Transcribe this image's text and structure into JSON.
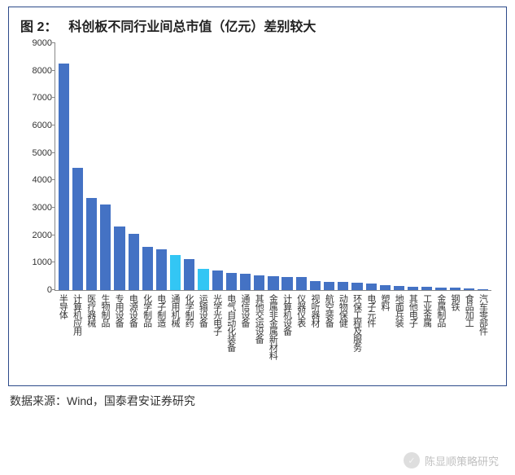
{
  "figure": {
    "number_label": "图 2：",
    "title": "科创板不同行业间总市值（亿元）差别较大",
    "source_label": "数据来源：Wind，国泰君安证券研究",
    "watermark_text": "陈显顺策略研究"
  },
  "chart": {
    "type": "bar",
    "ylim": [
      0,
      9000
    ],
    "ytick_step": 1000,
    "yticks": [
      0,
      1000,
      2000,
      3000,
      4000,
      5000,
      6000,
      7000,
      8000,
      9000
    ],
    "background_color": "#ffffff",
    "axis_color": "#888888",
    "label_fontsize": 11,
    "title_fontsize": 16,
    "bar_width": 0.9,
    "default_bar_color": "#4472c4",
    "highlight_bar_color": "#33c6f4",
    "categories": [
      {
        "label": "半导体",
        "value": 8250,
        "color": "#4472c4"
      },
      {
        "label": "计算机应用",
        "value": 4450,
        "color": "#4472c4"
      },
      {
        "label": "医疗器械",
        "value": 3350,
        "color": "#4472c4"
      },
      {
        "label": "生物制品",
        "value": 3120,
        "color": "#4472c4"
      },
      {
        "label": "专用设备",
        "value": 2330,
        "color": "#4472c4"
      },
      {
        "label": "电源设备",
        "value": 2060,
        "color": "#4472c4"
      },
      {
        "label": "化学制品",
        "value": 1580,
        "color": "#4472c4"
      },
      {
        "label": "电子制造",
        "value": 1500,
        "color": "#4472c4"
      },
      {
        "label": "通用机械",
        "value": 1270,
        "color": "#33c6f4"
      },
      {
        "label": "化学制药",
        "value": 1140,
        "color": "#4472c4"
      },
      {
        "label": "运输设备",
        "value": 760,
        "color": "#33c6f4"
      },
      {
        "label": "光学光电子",
        "value": 700,
        "color": "#4472c4"
      },
      {
        "label": "电气自动化装备",
        "value": 630,
        "color": "#4472c4"
      },
      {
        "label": "通信设备",
        "value": 590,
        "color": "#4472c4"
      },
      {
        "label": "其他交运设备",
        "value": 530,
        "color": "#4472c4"
      },
      {
        "label": "金属非金属新材料",
        "value": 510,
        "color": "#4472c4"
      },
      {
        "label": "计算机设备",
        "value": 490,
        "color": "#4472c4"
      },
      {
        "label": "仪器仪表",
        "value": 470,
        "color": "#4472c4"
      },
      {
        "label": "视听器材",
        "value": 330,
        "color": "#4472c4"
      },
      {
        "label": "航空装备",
        "value": 310,
        "color": "#4472c4"
      },
      {
        "label": "动物保健",
        "value": 290,
        "color": "#4472c4"
      },
      {
        "label": "环保工程及服务",
        "value": 260,
        "color": "#4472c4"
      },
      {
        "label": "电子元件",
        "value": 240,
        "color": "#4472c4"
      },
      {
        "label": "塑料",
        "value": 190,
        "color": "#4472c4"
      },
      {
        "label": "地面兵装",
        "value": 150,
        "color": "#4472c4"
      },
      {
        "label": "其他电子",
        "value": 130,
        "color": "#4472c4"
      },
      {
        "label": "工业金属",
        "value": 110,
        "color": "#4472c4"
      },
      {
        "label": "金属制品",
        "value": 95,
        "color": "#4472c4"
      },
      {
        "label": "钢铁",
        "value": 85,
        "color": "#4472c4"
      },
      {
        "label": "食品加工",
        "value": 55,
        "color": "#4472c4"
      },
      {
        "label": "汽车零部件",
        "value": 45,
        "color": "#4472c4"
      }
    ]
  }
}
